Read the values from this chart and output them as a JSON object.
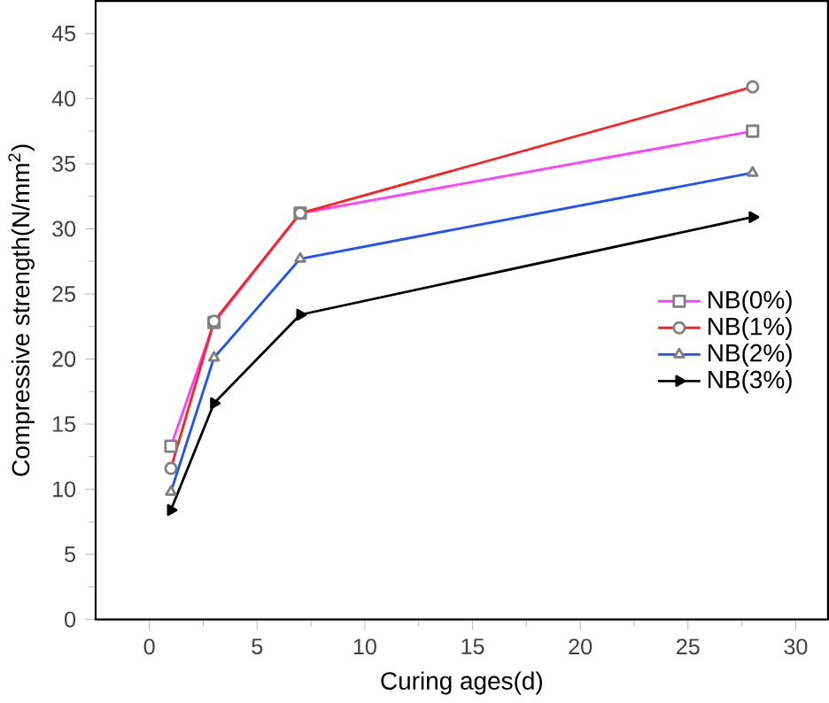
{
  "chart_data": {
    "type": "line",
    "xlabel": "Curing ages(d)",
    "ylabel": "Compressive strength(N/mm$^{2}$)",
    "x": [
      1,
      3,
      7,
      28
    ],
    "series": [
      {
        "name": "NB(0%)",
        "color": "#ff40ff",
        "marker": "square",
        "values": [
          13.3,
          22.8,
          31.2,
          37.5
        ]
      },
      {
        "name": "NB(1%)",
        "color": "#ff2020",
        "marker": "circle",
        "values": [
          11.6,
          22.9,
          31.2,
          40.9
        ]
      },
      {
        "name": "NB(2%)",
        "color": "#2050ff",
        "marker": "triangle",
        "values": [
          9.8,
          20.1,
          27.7,
          34.3
        ]
      },
      {
        "name": "NB(3%)",
        "color": "#000000",
        "marker": "triangle right",
        "values": [
          8.4,
          16.6,
          23.4,
          30.9
        ]
      }
    ],
    "xlim": [
      -2.5,
      31.5
    ],
    "ylim": [
      0,
      47.5
    ],
    "xticks": [
      0,
      5,
      10,
      15,
      20,
      25,
      30
    ],
    "yticks": [
      0,
      5,
      10,
      15,
      20,
      25,
      30,
      35,
      40,
      45
    ],
    "legend": "right",
    "grid": false
  }
}
